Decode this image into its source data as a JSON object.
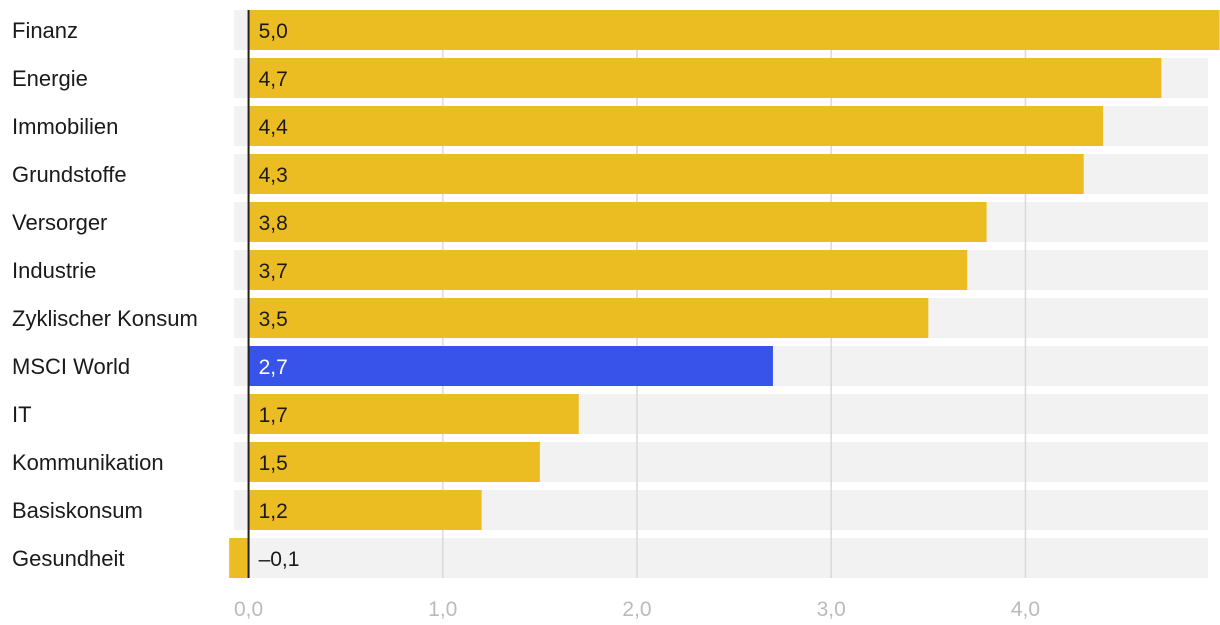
{
  "chart_data": {
    "type": "bar",
    "orientation": "horizontal",
    "title": "",
    "xlabel": "",
    "ylabel": "",
    "categories": [
      "Finanz",
      "Energie",
      "Immobilien",
      "Grundstoffe",
      "Versorger",
      "Industrie",
      "Zyklischer Konsum",
      "MSCI World",
      "IT",
      "Kommunikation",
      "Basiskonsum",
      "Gesundheit"
    ],
    "values": [
      5.0,
      4.7,
      4.4,
      4.3,
      3.8,
      3.7,
      3.5,
      2.7,
      1.7,
      1.5,
      1.2,
      -0.1
    ],
    "value_labels": [
      "5,0",
      "4,7",
      "4,4",
      "4,3",
      "3,8",
      "3,7",
      "3,5",
      "2,7",
      "1,7",
      "1,5",
      "1,2",
      "–0,1"
    ],
    "highlight": "MSCI World",
    "xticks": [
      0,
      1,
      2,
      3,
      4
    ],
    "xtick_labels": [
      "0,0",
      "1,0",
      "2,0",
      "3,0",
      "4,0"
    ],
    "xlim": [
      -0.075,
      4.94
    ],
    "grid": true,
    "colors": {
      "bar": "#ecbd22",
      "highlight": "#3753ea",
      "track": "#f2f2f2"
    }
  }
}
